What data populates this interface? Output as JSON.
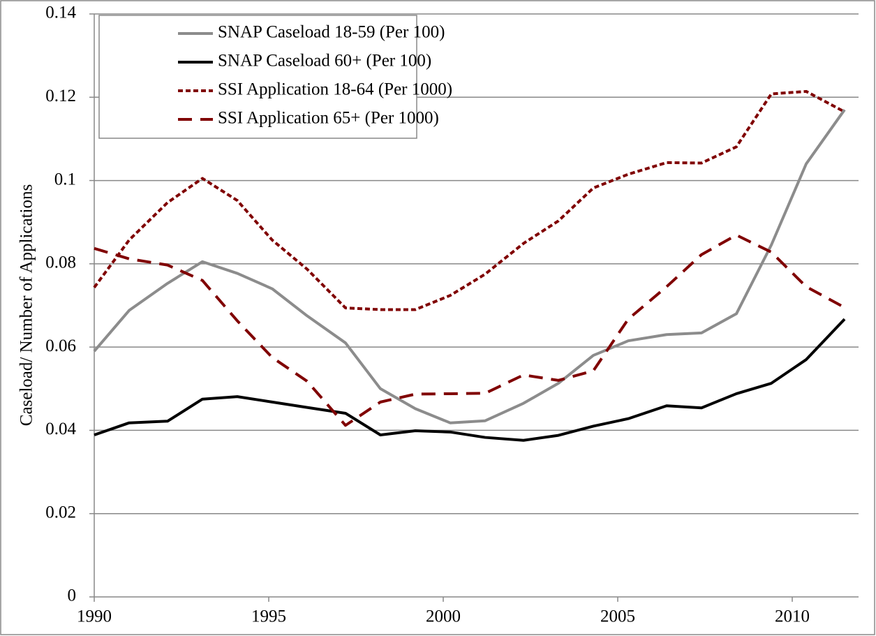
{
  "chart_data": {
    "type": "line",
    "y_label": "Caseload/ Number of Applications",
    "x": [
      1990.0,
      1991.0,
      1992.1,
      1993.1,
      1994.1,
      1995.1,
      1996.1,
      1997.2,
      1998.2,
      1999.2,
      2000.2,
      2001.2,
      2002.3,
      2003.3,
      2004.3,
      2005.3,
      2006.4,
      2007.4,
      2008.4,
      2009.4,
      2010.4,
      2011.5
    ],
    "series": [
      {
        "name": "SNAP Caseload  18-59 (Per 100)",
        "color": "#8c8c8c",
        "dash": "solid",
        "values": [
          0.059,
          0.0688,
          0.0753,
          0.0805,
          0.0777,
          0.074,
          0.0675,
          0.061,
          0.05,
          0.0452,
          0.0418,
          0.0423,
          0.0465,
          0.0513,
          0.058,
          0.0615,
          0.063,
          0.0634,
          0.068,
          0.0845,
          0.104,
          0.117
        ]
      },
      {
        "name": "SNAP Caseload 60+ (Per 100)",
        "color": "#000000",
        "dash": "solid",
        "values": [
          0.0389,
          0.0418,
          0.0422,
          0.0475,
          0.0481,
          0.0468,
          0.0455,
          0.0441,
          0.0389,
          0.0399,
          0.0396,
          0.0383,
          0.0376,
          0.0388,
          0.041,
          0.0428,
          0.0459,
          0.0454,
          0.0488,
          0.0513,
          0.057,
          0.0667
        ]
      },
      {
        "name": "SSI Application 18-64 (Per 1000)",
        "color": "#800000",
        "dash": "dotted",
        "values": [
          0.0743,
          0.0857,
          0.0947,
          0.1005,
          0.0952,
          0.0857,
          0.0787,
          0.0694,
          0.069,
          0.069,
          0.0724,
          0.0775,
          0.0849,
          0.0903,
          0.0982,
          0.1015,
          0.1043,
          0.1042,
          0.1081,
          0.1208,
          0.1214,
          0.1165
        ]
      },
      {
        "name": "SSI Application 65+ (Per 1000)",
        "color": "#800000",
        "dash": "dashed",
        "values": [
          0.0837,
          0.0812,
          0.0797,
          0.076,
          0.0663,
          0.0575,
          0.0518,
          0.0412,
          0.0468,
          0.0487,
          0.0488,
          0.0489,
          0.0533,
          0.052,
          0.0543,
          0.0667,
          0.0745,
          0.0822,
          0.0869,
          0.0828,
          0.0745,
          0.0695
        ]
      }
    ],
    "xlim": [
      1990,
      2011.9
    ],
    "xticks": [
      1990,
      1995,
      2000,
      2005,
      2010
    ],
    "ylim": [
      0,
      0.14
    ],
    "yticks": [
      0,
      0.02,
      0.04,
      0.06,
      0.08,
      0.1,
      0.12,
      0.14
    ],
    "grid": true,
    "legend": "upper left"
  }
}
